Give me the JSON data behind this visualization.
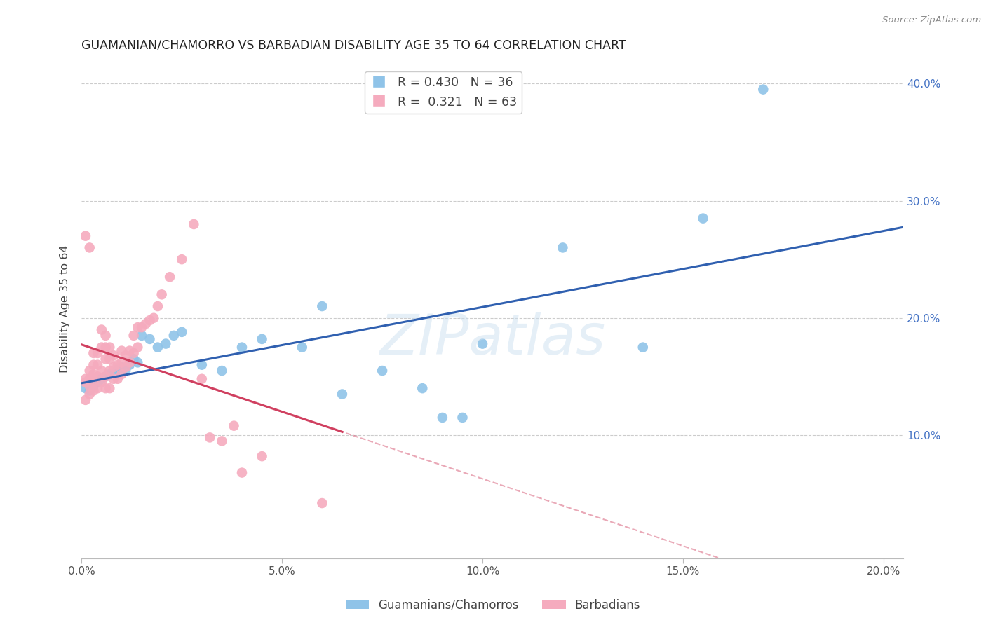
{
  "title": "GUAMANIAN/CHAMORRO VS BARBADIAN DISABILITY AGE 35 TO 64 CORRELATION CHART",
  "source": "Source: ZipAtlas.com",
  "ylabel": "Disability Age 35 to 64",
  "xlim": [
    0.0,
    0.205
  ],
  "ylim": [
    -0.005,
    0.42
  ],
  "y_ticks": [
    0.1,
    0.2,
    0.3,
    0.4
  ],
  "y_tick_labels": [
    "10.0%",
    "20.0%",
    "30.0%",
    "40.0%"
  ],
  "x_ticks": [
    0.0,
    0.05,
    0.1,
    0.15,
    0.2
  ],
  "x_tick_labels": [
    "0.0%",
    "5.0%",
    "10.0%",
    "15.0%",
    "20.0%"
  ],
  "legend_label_blue": "Guamanians/Chamorros",
  "legend_label_pink": "Barbadians",
  "R_blue": 0.43,
  "N_blue": 36,
  "R_pink": 0.321,
  "N_pink": 63,
  "blue_color": "#8FC3E8",
  "pink_color": "#F5ABBE",
  "blue_line_color": "#3060B0",
  "pink_line_color": "#D04060",
  "watermark": "ZIPatlas",
  "blue_x": [
    0.001,
    0.002,
    0.003,
    0.004,
    0.005,
    0.006,
    0.007,
    0.008,
    0.009,
    0.01,
    0.011,
    0.012,
    0.013,
    0.014,
    0.015,
    0.017,
    0.019,
    0.021,
    0.023,
    0.025,
    0.03,
    0.035,
    0.04,
    0.045,
    0.055,
    0.06,
    0.065,
    0.075,
    0.085,
    0.09,
    0.095,
    0.1,
    0.12,
    0.14,
    0.155,
    0.17
  ],
  "blue_y": [
    0.14,
    0.138,
    0.142,
    0.145,
    0.148,
    0.15,
    0.152,
    0.153,
    0.156,
    0.158,
    0.155,
    0.16,
    0.165,
    0.162,
    0.185,
    0.182,
    0.175,
    0.178,
    0.185,
    0.188,
    0.16,
    0.155,
    0.175,
    0.182,
    0.175,
    0.21,
    0.135,
    0.155,
    0.14,
    0.115,
    0.115,
    0.178,
    0.26,
    0.175,
    0.285,
    0.395
  ],
  "pink_x": [
    0.001,
    0.001,
    0.001,
    0.001,
    0.002,
    0.002,
    0.002,
    0.002,
    0.002,
    0.003,
    0.003,
    0.003,
    0.003,
    0.003,
    0.004,
    0.004,
    0.004,
    0.004,
    0.005,
    0.005,
    0.005,
    0.005,
    0.006,
    0.006,
    0.006,
    0.006,
    0.006,
    0.007,
    0.007,
    0.007,
    0.007,
    0.008,
    0.008,
    0.008,
    0.009,
    0.009,
    0.01,
    0.01,
    0.01,
    0.011,
    0.011,
    0.012,
    0.012,
    0.013,
    0.013,
    0.014,
    0.014,
    0.015,
    0.016,
    0.017,
    0.018,
    0.019,
    0.02,
    0.022,
    0.025,
    0.028,
    0.03,
    0.032,
    0.035,
    0.038,
    0.04,
    0.045,
    0.06
  ],
  "pink_y": [
    0.13,
    0.145,
    0.148,
    0.27,
    0.135,
    0.142,
    0.148,
    0.155,
    0.26,
    0.138,
    0.145,
    0.152,
    0.16,
    0.17,
    0.14,
    0.15,
    0.16,
    0.17,
    0.145,
    0.155,
    0.175,
    0.19,
    0.14,
    0.15,
    0.165,
    0.175,
    0.185,
    0.14,
    0.155,
    0.165,
    0.175,
    0.148,
    0.158,
    0.168,
    0.148,
    0.16,
    0.152,
    0.162,
    0.172,
    0.158,
    0.168,
    0.162,
    0.172,
    0.17,
    0.185,
    0.175,
    0.192,
    0.192,
    0.195,
    0.198,
    0.2,
    0.21,
    0.22,
    0.235,
    0.25,
    0.28,
    0.148,
    0.098,
    0.095,
    0.108,
    0.068,
    0.082,
    0.042
  ]
}
